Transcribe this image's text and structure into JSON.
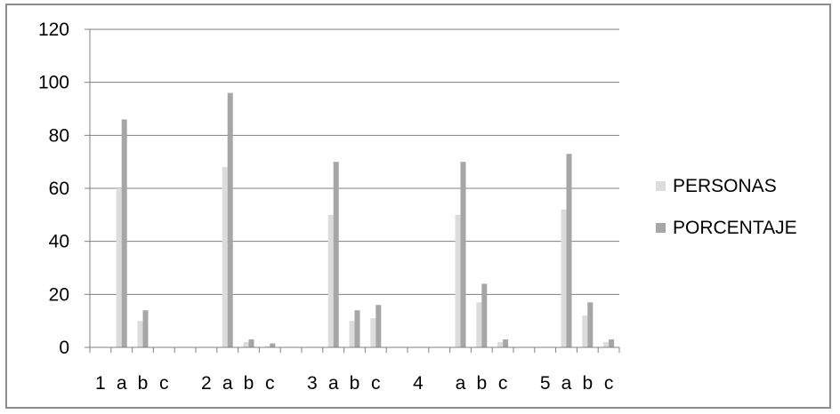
{
  "chart_data": {
    "type": "bar",
    "categories": [
      "1",
      "a",
      "b",
      "c",
      "",
      "2",
      "a",
      "b",
      "c",
      "",
      "3",
      "a",
      "b",
      "c",
      "",
      "4",
      "",
      "a",
      "b",
      "c",
      "",
      "5",
      "a",
      "b",
      "c"
    ],
    "series": [
      {
        "name": "PERSONAS",
        "values": [
          null,
          60,
          10,
          null,
          null,
          null,
          68,
          2,
          0.5,
          null,
          null,
          50,
          10,
          11,
          null,
          null,
          null,
          50,
          17,
          2,
          null,
          null,
          52,
          12,
          2
        ]
      },
      {
        "name": "PORCENTAJE",
        "values": [
          null,
          86,
          14,
          null,
          null,
          null,
          96,
          3,
          1.5,
          null,
          null,
          70,
          14,
          16,
          null,
          null,
          null,
          70,
          24,
          3,
          null,
          null,
          73,
          17,
          3
        ]
      }
    ],
    "ylim": [
      0,
      120
    ],
    "yticks": [
      0,
      20,
      40,
      60,
      80,
      100,
      120
    ],
    "grid": true,
    "legend_position": "right",
    "colors": {
      "PERSONAS": "#dcdcdc",
      "PORCENTAJE": "#a6a6a6",
      "grid": "#808080",
      "axis": "#808080"
    }
  }
}
